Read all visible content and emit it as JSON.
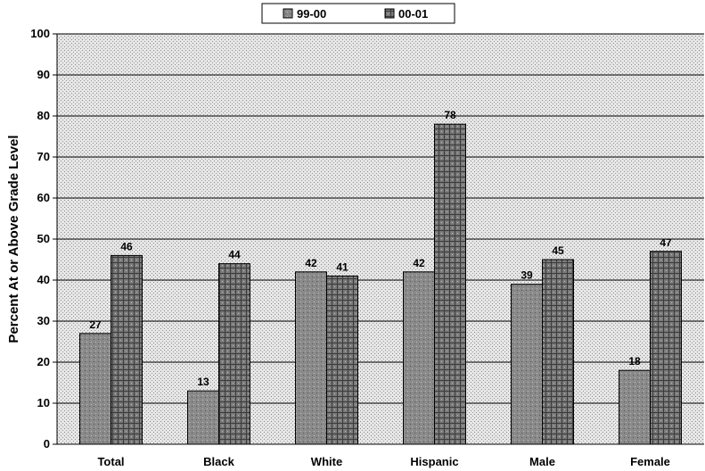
{
  "chart_data": {
    "type": "bar",
    "title": "",
    "xlabel": "",
    "ylabel": "Percent At or Above Grade Level",
    "categories": [
      "Total",
      "Black",
      "White",
      "Hispanic",
      "Male",
      "Female"
    ],
    "series": [
      {
        "name": "99-00",
        "values": [
          27,
          13,
          42,
          42,
          39,
          18
        ]
      },
      {
        "name": "00-01",
        "values": [
          46,
          44,
          41,
          78,
          45,
          47
        ]
      }
    ],
    "ylim": [
      0,
      100
    ],
    "yticks": [
      "0",
      "10",
      "20",
      "30",
      "40",
      "50",
      "60",
      "70",
      "80",
      "90",
      "100"
    ],
    "grid": true,
    "legend_position": "top-center"
  },
  "colors": {
    "series_99_00": "#7d7d7d",
    "series_00_01": "#6a6a6a",
    "plot_background": "#e4e4e4",
    "gridline": "#000000"
  }
}
